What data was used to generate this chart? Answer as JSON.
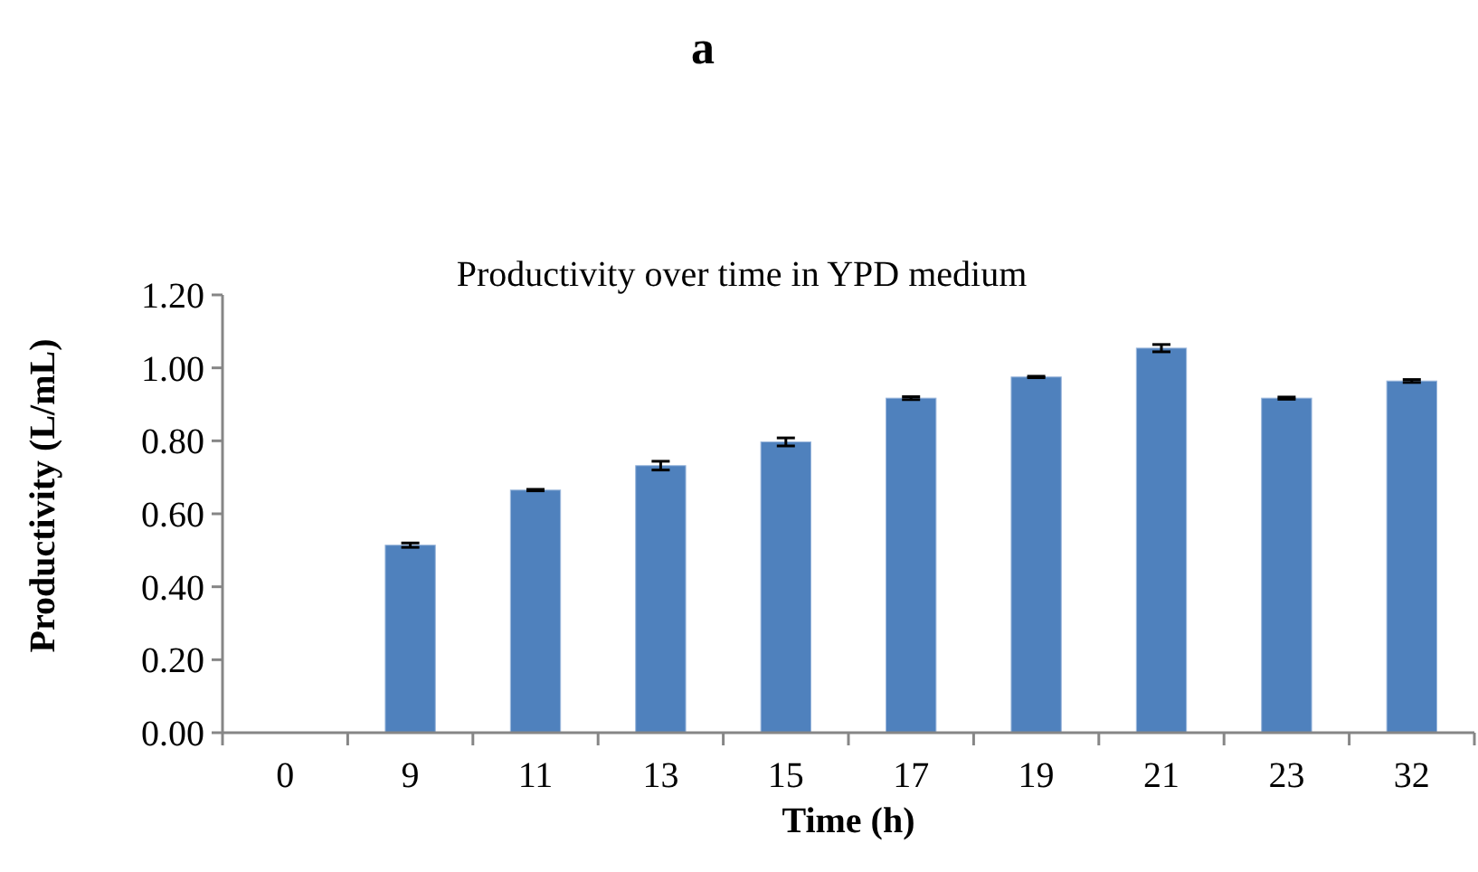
{
  "chart_data": {
    "type": "bar",
    "title": "a",
    "subtitle": "Productivity over time in YPD medium",
    "xlabel": "Time (h)",
    "ylabel": "Productivity (L/mL)",
    "categories": [
      "0",
      "9",
      "11",
      "13",
      "15",
      "17",
      "19",
      "21",
      "23",
      "32"
    ],
    "values": [
      0,
      0.514,
      0.665,
      0.732,
      0.797,
      0.917,
      0.975,
      1.054,
      0.917,
      0.964
    ],
    "errors": [
      null,
      0.006,
      0.002,
      0.012,
      0.011,
      0.004,
      0.002,
      0.01,
      0.003,
      0.004
    ],
    "color": "#4f81bd",
    "ylim": [
      0,
      1.2
    ],
    "yticks": [
      {
        "value": 0,
        "label": "0.00"
      },
      {
        "value": 0.2,
        "label": "0.20"
      },
      {
        "value": 0.4,
        "label": "0.40"
      },
      {
        "value": 0.6,
        "label": "0.60"
      },
      {
        "value": 0.8,
        "label": "0.80"
      },
      {
        "value": 1,
        "label": "1.00"
      },
      {
        "value": 1.2,
        "label": "1.20"
      }
    ],
    "grid": false
  }
}
